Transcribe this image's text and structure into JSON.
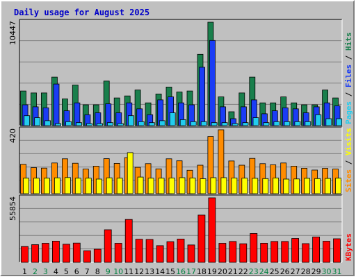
{
  "chart_data": {
    "type": "bar",
    "title": "Daily usage for August 2025",
    "categories": [
      "1",
      "2",
      "3",
      "4",
      "5",
      "6",
      "7",
      "8",
      "9",
      "10",
      "11",
      "12",
      "13",
      "14",
      "15",
      "16",
      "17",
      "18",
      "19",
      "20",
      "21",
      "22",
      "23",
      "24",
      "25",
      "26",
      "27",
      "28",
      "29",
      "30",
      "31"
    ],
    "weekend_days": [
      "2",
      "3",
      "9",
      "10",
      "16",
      "17",
      "23",
      "24",
      "30",
      "31"
    ],
    "colors": {
      "background": "#c0c0c0",
      "plot": "#c0c0c0",
      "grid": "#7f7f7f",
      "hits": "#197f4c",
      "files": "#1a3cf5",
      "pages": "#22ccee",
      "visits": "#ffff00",
      "sites": "#ff8c00",
      "kbytes": "#ff0000",
      "title": "#0000c8",
      "weekday": "#000000",
      "weekend": "#008040"
    },
    "panels": [
      {
        "name": "hits-files-pages",
        "ymax_label": "10447",
        "ymax": 10447,
        "right_labels": [
          {
            "text": "Pages",
            "color": "#22ccee"
          },
          {
            "text": " / ",
            "color": "#000000"
          },
          {
            "text": "Files",
            "color": "#1a3cf5"
          },
          {
            "text": " / ",
            "color": "#000000"
          },
          {
            "text": "Hits",
            "color": "#197f4c"
          }
        ],
        "series": [
          {
            "name": "Hits",
            "values": [
              3500,
              3300,
              3300,
              4900,
              2700,
              4100,
              2100,
              2100,
              4500,
              2800,
              3000,
              3600,
              2300,
              3200,
              3900,
              3400,
              3500,
              7200,
              10447,
              2900,
              1400,
              3300,
              4900,
              2300,
              2300,
              2900,
              2300,
              2100,
              2100,
              3600,
              2800
            ]
          },
          {
            "name": "Files",
            "values": [
              2100,
              1900,
              1800,
              4200,
              1500,
              2300,
              1100,
              1300,
              2200,
              1300,
              2300,
              1700,
              1100,
              2600,
              2900,
              2300,
              2100,
              5900,
              8600,
              1900,
              700,
              1900,
              2600,
              1200,
              1500,
              1800,
              1700,
              1300,
              1900,
              2300,
              2000
            ]
          },
          {
            "name": "Pages",
            "values": [
              1000,
              800,
              500,
              200,
              400,
              300,
              200,
              200,
              300,
              200,
              1000,
              400,
              300,
              500,
              1300,
              600,
              400,
              400,
              300,
              300,
              200,
              300,
              800,
              300,
              400,
              400,
              400,
              400,
              1100,
              700,
              700
            ]
          }
        ]
      },
      {
        "name": "visits-sites",
        "ymax_label": "420",
        "ymax": 420,
        "right_labels": [
          {
            "text": "Sites",
            "color": "#ff8c00"
          },
          {
            "text": " / ",
            "color": "#000000"
          },
          {
            "text": "Visits",
            "color": "#ffff00"
          }
        ],
        "series": [
          {
            "name": "Sites",
            "values": [
              193,
              171,
              168,
              202,
              229,
              200,
              162,
              181,
              230,
              199,
              237,
              173,
              197,
              163,
              229,
              216,
              154,
              187,
              376,
              420,
              215,
              187,
              232,
              197,
              190,
              202,
              181,
              167,
              155,
              166,
              162
            ]
          },
          {
            "name": "Visits",
            "values": [
              102,
              102,
              102,
              104,
              106,
              102,
              102,
              96,
              104,
              102,
              270,
              109,
              102,
              102,
              103,
              105,
              103,
              98,
              105,
              105,
              103,
              102,
              101,
              99,
              103,
              96,
              97,
              101,
              99,
              100,
              102
            ]
          }
        ]
      },
      {
        "name": "kbytes",
        "ymax_label": "55854",
        "ymax": 55854,
        "right_labels": [
          {
            "text": "KBytes",
            "color": "#ff0000"
          }
        ],
        "series": [
          {
            "name": "KBytes",
            "values": [
              13700,
              15300,
              16500,
              18400,
              15700,
              16700,
              10000,
              11400,
              28200,
              16500,
              37100,
              20000,
              19800,
              14500,
              17900,
              20200,
              15100,
              40900,
              55854,
              16500,
              18100,
              16100,
              25000,
              16600,
              18100,
              18100,
              20700,
              16200,
              22000,
              18300,
              20400
            ]
          }
        ]
      }
    ]
  }
}
